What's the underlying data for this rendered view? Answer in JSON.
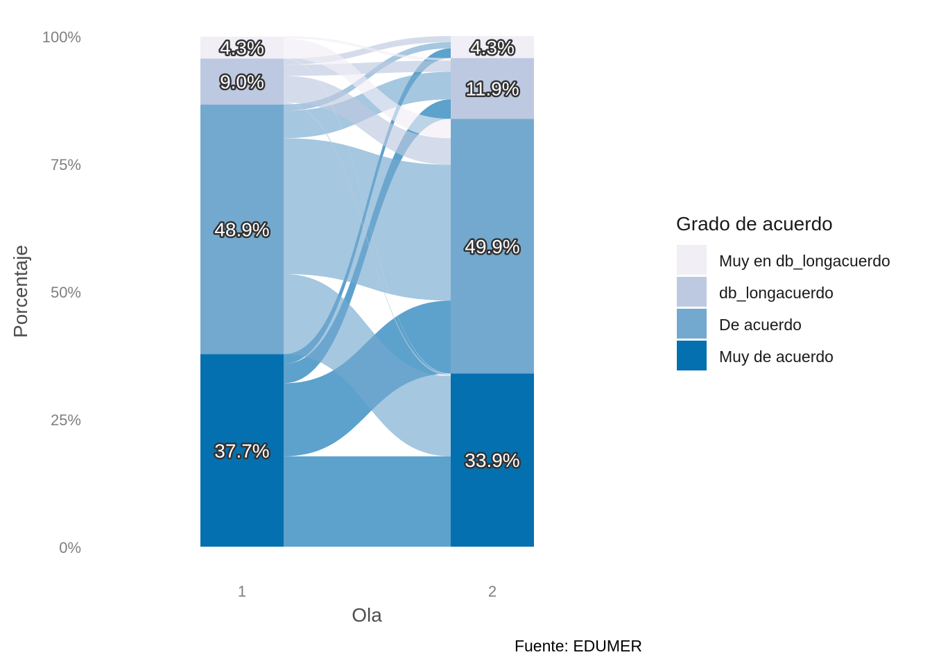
{
  "chart_data": {
    "type": "alluvial",
    "xlabel": "Ola",
    "ylabel": "Porcentaje",
    "caption": "Fuente: EDUMER",
    "y_ticks": [
      "0%",
      "25%",
      "50%",
      "75%",
      "100%"
    ],
    "ylim": [
      0,
      100
    ],
    "x": [
      "1",
      "2"
    ],
    "legend": {
      "title": "Grado de acuerdo",
      "position": "right",
      "entries": [
        "Muy en db_longacuerdo",
        "db_longacuerdo",
        "De acuerdo",
        "Muy de acuerdo"
      ]
    },
    "categories": [
      "Muy de acuerdo",
      "De acuerdo",
      "db_longacuerdo",
      "Muy en db_longacuerdo"
    ],
    "colors": {
      "Muy de acuerdo": "#0570b0",
      "De acuerdo": "#74a9cf",
      "db_longacuerdo": "#bdc9e1",
      "Muy en db_longacuerdo": "#f1eef6"
    },
    "ola_1": {
      "Muy de acuerdo": 37.7,
      "De acuerdo": 48.9,
      "db_longacuerdo": 9.0,
      "Muy en db_longacuerdo": 4.3
    },
    "ola_2": {
      "Muy de acuerdo": 33.9,
      "De acuerdo": 49.9,
      "db_longacuerdo": 11.9,
      "Muy en db_longacuerdo": 4.3
    },
    "labels_ola_1": [
      "37.7%",
      "48.9%",
      "9.0%",
      "4.3%"
    ],
    "labels_ola_2": [
      "33.9%",
      "49.9%",
      "11.9%",
      "4.3%"
    ],
    "flows": [
      {
        "from": "Muy de acuerdo",
        "to": "Muy de acuerdo",
        "value": 17.7
      },
      {
        "from": "Muy de acuerdo",
        "to": "De acuerdo",
        "value": 14.3
      },
      {
        "from": "Muy de acuerdo",
        "to": "db_longacuerdo",
        "value": 3.8
      },
      {
        "from": "Muy de acuerdo",
        "to": "Muy en db_longacuerdo",
        "value": 1.9
      },
      {
        "from": "De acuerdo",
        "to": "Muy de acuerdo",
        "value": 15.7
      },
      {
        "from": "De acuerdo",
        "to": "De acuerdo",
        "value": 26.6
      },
      {
        "from": "De acuerdo",
        "to": "db_longacuerdo",
        "value": 5.4
      },
      {
        "from": "De acuerdo",
        "to": "Muy en db_longacuerdo",
        "value": 1.2
      },
      {
        "from": "db_longacuerdo",
        "to": "Muy de acuerdo",
        "value": 0.4
      },
      {
        "from": "db_longacuerdo",
        "to": "De acuerdo",
        "value": 5.2
      },
      {
        "from": "db_longacuerdo",
        "to": "db_longacuerdo",
        "value": 2.2
      },
      {
        "from": "db_longacuerdo",
        "to": "Muy en db_longacuerdo",
        "value": 1.2
      },
      {
        "from": "Muy en db_longacuerdo",
        "to": "Muy de acuerdo",
        "value": 0.1
      },
      {
        "from": "Muy en db_longacuerdo",
        "to": "De acuerdo",
        "value": 3.8
      },
      {
        "from": "Muy en db_longacuerdo",
        "to": "db_longacuerdo",
        "value": 0.5
      },
      {
        "from": "Muy en db_longacuerdo",
        "to": "Muy en db_longacuerdo",
        "value": 0.0
      }
    ]
  }
}
